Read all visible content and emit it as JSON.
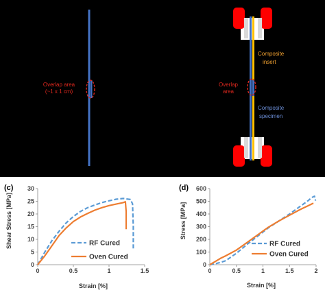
{
  "diagram_left": {
    "overlap_label_line1": "Overlap area",
    "overlap_label_line2": "(~1 x 1 cm)"
  },
  "diagram_right": {
    "overlap_label_line1": "Overlap",
    "overlap_label_line2": "area",
    "insert_label_line1": "Composite",
    "insert_label_line2": "insert",
    "specimen_label_line1": "Composite",
    "specimen_label_line2": "specimen"
  },
  "colors": {
    "specimen": "#4472c4",
    "insert": "#ffc000",
    "overlap_label": "#e0281e",
    "grip": "#ff0000",
    "rf_cured": "#5b9bd5",
    "oven_cured": "#ed7d31",
    "insert_label": "#f0a030",
    "specimen_label": "#6c8fd8"
  },
  "chart_data": [
    {
      "panel_label": "(c)",
      "type": "line",
      "xlabel": "Strain [%]",
      "ylabel": "Shear Stress [MPa]",
      "xlim": [
        0,
        1.5
      ],
      "ylim": [
        0,
        30
      ],
      "xticks": [
        "0",
        "0.5",
        "1",
        "1.5"
      ],
      "yticks": [
        "0",
        "5",
        "10",
        "15",
        "20",
        "25",
        "30"
      ],
      "legend_position": "lower-right",
      "series": [
        {
          "name": "RF Cured",
          "style": "dashed",
          "x": [
            0,
            0.1,
            0.2,
            0.3,
            0.4,
            0.5,
            0.6,
            0.7,
            0.8,
            0.9,
            1.0,
            1.1,
            1.2,
            1.3,
            1.33,
            1.34,
            1.34
          ],
          "y": [
            0,
            5,
            9.5,
            13.2,
            16.5,
            19,
            21,
            22.5,
            23.5,
            24.5,
            25.2,
            25.8,
            26.1,
            25.7,
            24,
            15,
            6
          ]
        },
        {
          "name": "Oven Cured",
          "style": "solid",
          "x": [
            0,
            0.1,
            0.2,
            0.3,
            0.4,
            0.5,
            0.6,
            0.7,
            0.8,
            0.9,
            1.0,
            1.1,
            1.2,
            1.23,
            1.24,
            1.24
          ],
          "y": [
            0,
            3.5,
            7.5,
            11.5,
            14.5,
            17,
            18.8,
            20.2,
            21.5,
            22.5,
            23.3,
            23.9,
            24.5,
            24.8,
            21,
            14
          ]
        }
      ]
    },
    {
      "panel_label": "(d)",
      "type": "line",
      "xlabel": "Strain [%]",
      "ylabel": "Stress [MPa]",
      "xlim": [
        0,
        2
      ],
      "ylim": [
        0,
        600
      ],
      "xticks": [
        "0",
        "0.5",
        "1",
        "1.5",
        "2"
      ],
      "yticks": [
        "0",
        "100",
        "200",
        "300",
        "400",
        "500",
        "600"
      ],
      "legend_position": "lower-right",
      "series": [
        {
          "name": "RF Cured",
          "style": "dashed",
          "x": [
            0,
            0.1,
            0.2,
            0.3,
            0.5,
            0.7,
            0.9,
            1.1,
            1.3,
            1.5,
            1.7,
            1.85,
            1.92,
            1.97,
            1.99
          ],
          "y": [
            0,
            8,
            18,
            32,
            90,
            160,
            225,
            290,
            345,
            400,
            460,
            505,
            530,
            540,
            505
          ]
        },
        {
          "name": "Oven Cured",
          "style": "solid",
          "x": [
            0,
            0.1,
            0.2,
            0.3,
            0.5,
            0.7,
            0.9,
            1.1,
            1.3,
            1.5,
            1.7,
            1.85,
            1.95
          ],
          "y": [
            0,
            25,
            50,
            70,
            115,
            175,
            235,
            295,
            345,
            390,
            435,
            465,
            485
          ]
        }
      ]
    }
  ]
}
